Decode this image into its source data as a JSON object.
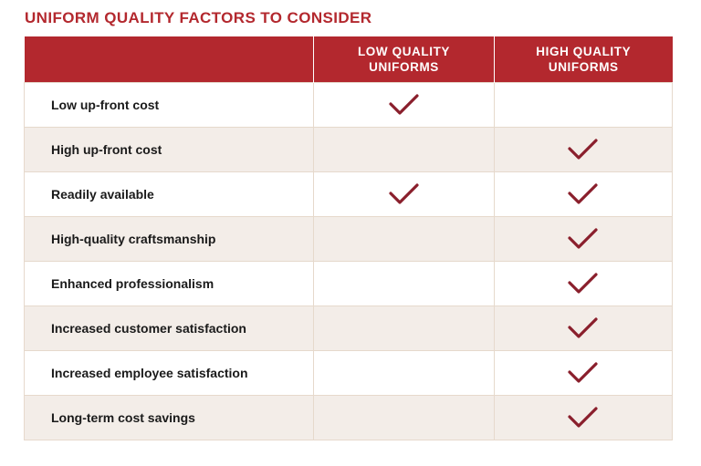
{
  "title": "UNIFORM QUALITY FACTORS TO CONSIDER",
  "columns": {
    "factor": "",
    "low": [
      "LOW QUALITY",
      "UNIFORMS"
    ],
    "high": [
      "HIGH QUALITY",
      "UNIFORMS"
    ]
  },
  "rows": [
    {
      "factor": "Low up-front cost",
      "low": true,
      "high": false
    },
    {
      "factor": "High up-front cost",
      "low": false,
      "high": true
    },
    {
      "factor": "Readily available",
      "low": true,
      "high": true
    },
    {
      "factor": "High-quality craftsmanship",
      "low": false,
      "high": true
    },
    {
      "factor": "Enhanced professionalism",
      "low": false,
      "high": true
    },
    {
      "factor": "Increased customer satisfaction",
      "low": false,
      "high": true
    },
    {
      "factor": "Increased employee satisfaction",
      "low": false,
      "high": true
    },
    {
      "factor": "Long-term cost savings",
      "low": false,
      "high": true
    }
  ],
  "check_icon": "checkmark-icon",
  "colors": {
    "accent": "#b3282e",
    "check": "#8a1f2c",
    "row_alt": "#f3ede8",
    "border": "#e6d9cc"
  }
}
